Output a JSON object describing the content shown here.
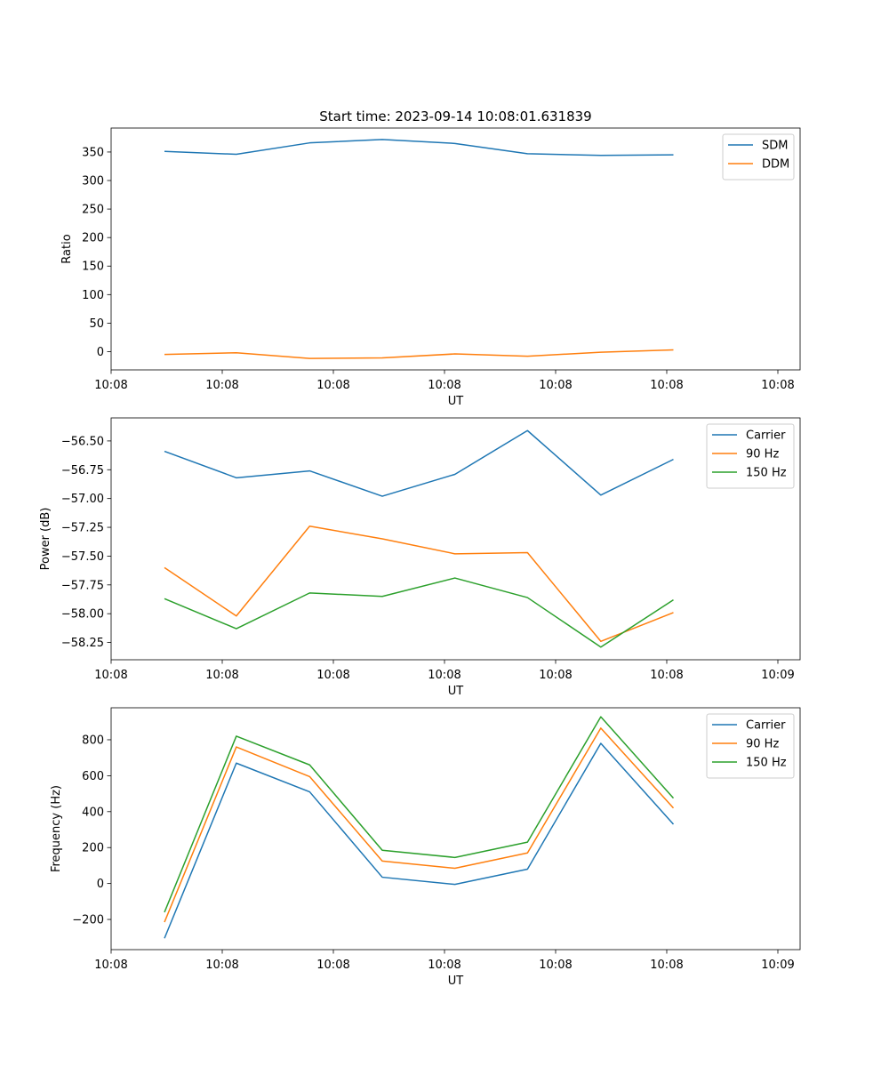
{
  "title": "Start time: 2023-09-14 10:08:01.631839",
  "chart_data": [
    {
      "type": "line",
      "title": "Start time: 2023-09-14 10:08:01.631839",
      "xlabel": "UT",
      "ylabel": "Ratio",
      "xlim": [
        0,
        9.3
      ],
      "ylim": [
        -32,
        392
      ],
      "xticks": [
        0,
        1.5,
        3,
        4.5,
        6,
        7.5,
        9
      ],
      "xtick_labels": [
        "10:08",
        "10:08",
        "10:08",
        "10:08",
        "10:08",
        "10:08",
        "10:08"
      ],
      "yticks": [
        0,
        50,
        100,
        150,
        200,
        250,
        300,
        350
      ],
      "ytick_labels": [
        "0",
        "50",
        "100",
        "150",
        "200",
        "250",
        "300",
        "350"
      ],
      "legend_position": "top-right",
      "x": [
        0.72,
        1.69,
        2.68,
        3.66,
        4.64,
        5.62,
        6.61,
        7.59
      ],
      "series": [
        {
          "name": "SDM",
          "color": "#1f77b4",
          "values": [
            351,
            346,
            366,
            372,
            365,
            347,
            344,
            345
          ]
        },
        {
          "name": "DDM",
          "color": "#ff7f0e",
          "values": [
            -5,
            -2,
            -12,
            -11,
            -4,
            -8,
            -1,
            3
          ]
        }
      ]
    },
    {
      "type": "line",
      "title": "",
      "xlabel": "UT",
      "ylabel": "Power (dB)",
      "xlim": [
        0,
        9.3
      ],
      "ylim": [
        -58.4,
        -56.3
      ],
      "xticks": [
        0,
        1.5,
        3,
        4.5,
        6,
        7.5,
        9
      ],
      "xtick_labels": [
        "10:08",
        "10:08",
        "10:08",
        "10:08",
        "10:08",
        "10:08",
        "10:09"
      ],
      "yticks": [
        -58.25,
        -58.0,
        -57.75,
        -57.5,
        -57.25,
        -57.0,
        -56.75,
        -56.5
      ],
      "ytick_labels": [
        "−58.25",
        "−58.00",
        "−57.75",
        "−57.50",
        "−57.25",
        "−57.00",
        "−56.75",
        "−56.50"
      ],
      "legend_position": "top-right",
      "x": [
        0.72,
        1.69,
        2.68,
        3.66,
        4.64,
        5.62,
        6.61,
        7.59
      ],
      "series": [
        {
          "name": "Carrier",
          "color": "#1f77b4",
          "values": [
            -56.59,
            -56.82,
            -56.76,
            -56.98,
            -56.79,
            -56.41,
            -56.97,
            -56.66
          ]
        },
        {
          "name": "90 Hz",
          "color": "#ff7f0e",
          "values": [
            -57.6,
            -58.02,
            -57.24,
            -57.35,
            -57.48,
            -57.47,
            -58.24,
            -57.99
          ]
        },
        {
          "name": "150 Hz",
          "color": "#2ca02c",
          "values": [
            -57.87,
            -58.13,
            -57.82,
            -57.85,
            -57.69,
            -57.86,
            -58.29,
            -57.88
          ]
        }
      ]
    },
    {
      "type": "line",
      "title": "",
      "xlabel": "UT",
      "ylabel": "Frequency (Hz)",
      "xlim": [
        0,
        9.3
      ],
      "ylim": [
        -368,
        978
      ],
      "xticks": [
        0,
        1.5,
        3,
        4.5,
        6,
        7.5,
        9
      ],
      "xtick_labels": [
        "10:08",
        "10:08",
        "10:08",
        "10:08",
        "10:08",
        "10:08",
        "10:09"
      ],
      "yticks": [
        -200,
        0,
        200,
        400,
        600,
        800
      ],
      "ytick_labels": [
        "−200",
        "0",
        "200",
        "400",
        "600",
        "800"
      ],
      "legend_position": "top-right",
      "x": [
        0.72,
        1.69,
        2.68,
        3.66,
        4.64,
        5.62,
        6.61,
        7.59
      ],
      "series": [
        {
          "name": "Carrier",
          "color": "#1f77b4",
          "values": [
            -305,
            670,
            510,
            35,
            -5,
            80,
            780,
            330
          ]
        },
        {
          "name": "90 Hz",
          "color": "#ff7f0e",
          "values": [
            -215,
            760,
            595,
            125,
            85,
            170,
            865,
            420
          ]
        },
        {
          "name": "150 Hz",
          "color": "#2ca02c",
          "values": [
            -160,
            820,
            660,
            185,
            145,
            230,
            928,
            475
          ]
        }
      ]
    }
  ]
}
